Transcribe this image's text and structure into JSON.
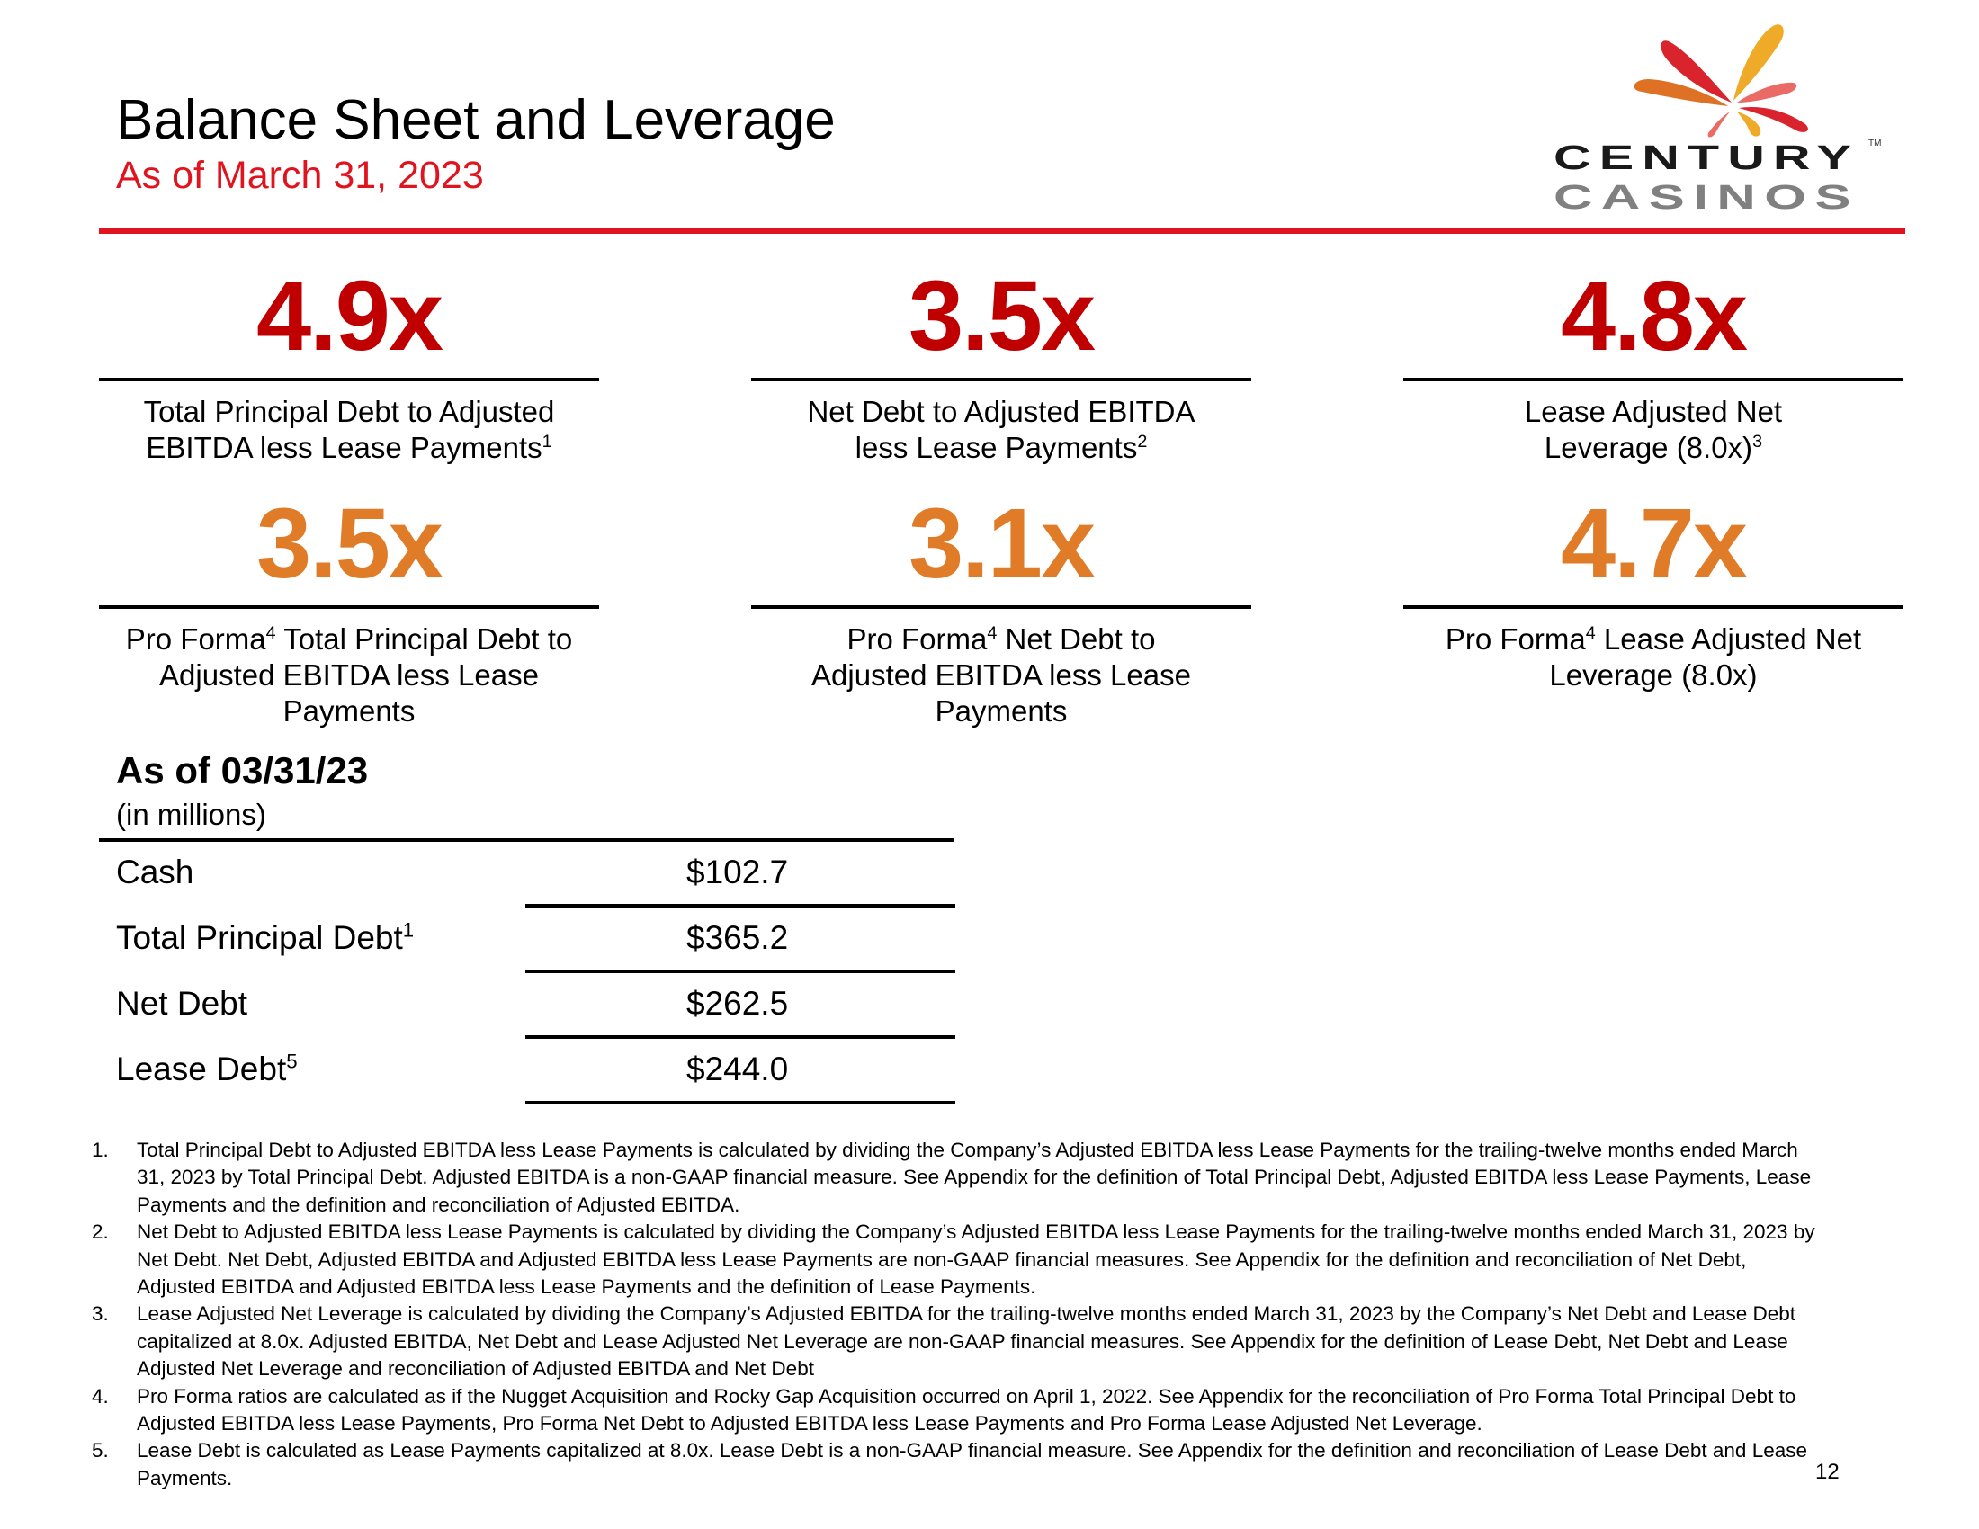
{
  "header": {
    "title": "Balance Sheet and Leverage",
    "subtitle": "As of March 31, 2023",
    "logo_text": [
      "CENTURY",
      "CASINOS",
      "TM"
    ]
  },
  "colors": {
    "accent_red": "#e0141e",
    "metric_red": "#c00000",
    "metric_orange": "#e07b28"
  },
  "metrics": [
    {
      "value": "4.9x",
      "label": "Total Principal Debt to Adjusted EBITDA less Lease Payments",
      "sup": "1"
    },
    {
      "value": "3.5x",
      "label": "Net Debt to Adjusted EBITDA less Lease Payments",
      "sup": "2"
    },
    {
      "value": "4.8x",
      "label": "Lease Adjusted Net Leverage (8.0x)",
      "sup": "3"
    },
    {
      "value": "3.5x",
      "pre": "Pro Forma",
      "sup": "4",
      "label": " Total Principal Debt to Adjusted EBITDA less Lease Payments"
    },
    {
      "value": "3.1x",
      "pre": "Pro Forma",
      "sup": "4",
      "label": " Net Debt to Adjusted EBITDA less Lease Payments"
    },
    {
      "value": "4.7x",
      "pre": "Pro Forma",
      "sup": "4",
      "label": " Lease Adjusted Net Leverage (8.0x)"
    }
  ],
  "table": {
    "heading": "As of 03/31/23",
    "units": "(in millions)",
    "rows": [
      {
        "label": "Cash",
        "sup": "",
        "value": "$102.7"
      },
      {
        "label": "Total Principal Debt",
        "sup": "1",
        "value": "$365.2"
      },
      {
        "label": "Net Debt",
        "sup": "",
        "value": "$262.5"
      },
      {
        "label": "Lease Debt",
        "sup": "5",
        "value": "$244.0"
      }
    ]
  },
  "footnotes": [
    {
      "n": "1.",
      "text": "Total Principal Debt to Adjusted EBITDA less Lease Payments is calculated by dividing the Company’s Adjusted EBITDA less Lease Payments for the trailing-twelve months ended March 31, 2023 by Total Principal Debt. Adjusted EBITDA is a non-GAAP financial measure. See Appendix for the definition of Total Principal Debt, Adjusted EBITDA less Lease Payments, Lease Payments and the definition and reconciliation of Adjusted EBITDA."
    },
    {
      "n": "2.",
      "text": "Net Debt to Adjusted EBITDA less Lease Payments is calculated by dividing the Company’s Adjusted EBITDA less Lease Payments for the trailing-twelve months ended March 31, 2023 by Net Debt. Net Debt, Adjusted EBITDA and Adjusted EBITDA less Lease Payments are non-GAAP financial measures. See Appendix for the definition and reconciliation of Net Debt, Adjusted EBITDA and Adjusted EBITDA less Lease Payments and the definition of Lease Payments."
    },
    {
      "n": "3.",
      "text": "Lease Adjusted Net Leverage is calculated by dividing the Company’s Adjusted EBITDA for the trailing-twelve months ended March 31, 2023 by the Company’s Net Debt and Lease Debt capitalized at 8.0x. Adjusted EBITDA, Net Debt and Lease Adjusted Net Leverage are non-GAAP financial measures. See Appendix for the definition of Lease Debt, Net Debt and Lease Adjusted Net Leverage and reconciliation of Adjusted EBITDA and Net Debt"
    },
    {
      "n": "4.",
      "text": "Pro Forma ratios are calculated as if the Nugget Acquisition and Rocky Gap Acquisition occurred on April 1, 2022. See Appendix for the reconciliation of Pro Forma Total Principal Debt to Adjusted EBITDA less Lease Payments, Pro Forma Net Debt to Adjusted EBITDA less Lease Payments and Pro Forma Lease Adjusted Net Leverage."
    },
    {
      "n": "5.",
      "text": "Lease Debt is calculated as Lease Payments capitalized at 8.0x. Lease Debt is a non-GAAP financial measure. See Appendix for the definition and reconciliation of Lease Debt and Lease Payments."
    }
  ],
  "page_number": "12"
}
